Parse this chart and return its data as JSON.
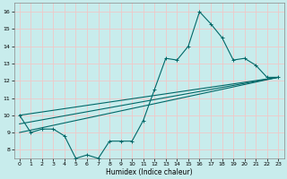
{
  "xlabel": "Humidex (Indice chaleur)",
  "xlim": [
    -0.5,
    23.5
  ],
  "ylim": [
    7.5,
    16.5
  ],
  "xticks": [
    0,
    1,
    2,
    3,
    4,
    5,
    6,
    7,
    8,
    9,
    10,
    11,
    12,
    13,
    14,
    15,
    16,
    17,
    18,
    19,
    20,
    21,
    22,
    23
  ],
  "yticks": [
    8,
    9,
    10,
    11,
    12,
    13,
    14,
    15,
    16
  ],
  "bg_color": "#c8ecec",
  "grid_color": "#f0c8c8",
  "line_color": "#006868",
  "line1_x": [
    0,
    1,
    2,
    3,
    4,
    5,
    6,
    7,
    8,
    9,
    10,
    11,
    12,
    13,
    14,
    15,
    16,
    17,
    18,
    19,
    20,
    21,
    22,
    23
  ],
  "line1_y": [
    10,
    9,
    9.2,
    9.2,
    8.8,
    7.5,
    7.7,
    7.5,
    8.5,
    8.5,
    8.5,
    9.7,
    11.5,
    13.3,
    13.2,
    14.0,
    16.0,
    15.3,
    14.5,
    13.2,
    13.3,
    12.9,
    12.2,
    12.2
  ],
  "line2_x": [
    0,
    23
  ],
  "line2_y": [
    10.0,
    12.2
  ],
  "line3_x": [
    0,
    23
  ],
  "line3_y": [
    9.5,
    12.2
  ],
  "line4_x": [
    0,
    23
  ],
  "line4_y": [
    9.0,
    12.2
  ]
}
